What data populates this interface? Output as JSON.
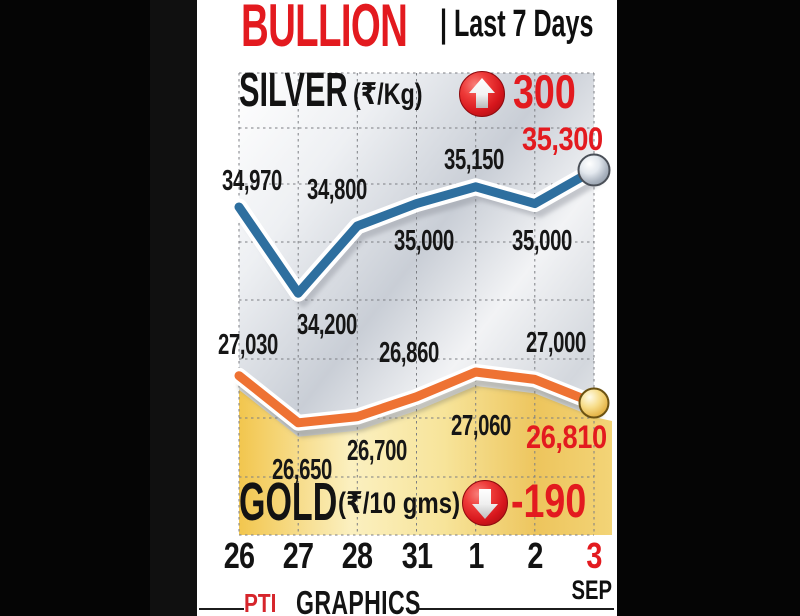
{
  "header": {
    "title": "BULLION",
    "subtitle": "| Last 7 Days"
  },
  "silver_section": {
    "name": "SILVER",
    "unit": "(₹/Kg)",
    "change": "300",
    "direction": "up"
  },
  "gold_section": {
    "name": "GOLD",
    "unit": "(₹/10 gms)",
    "change": "-190",
    "direction": "down"
  },
  "axis": {
    "month": "SEP"
  },
  "footer": {
    "logo": "PTI",
    "text": "GRAPHICS"
  },
  "colors": {
    "accent_red": "#e31a1f",
    "silver_line": "#2e6f9f",
    "gold_line": "#ee7233",
    "grid": "#7c7e83"
  },
  "chart_data": {
    "type": "line",
    "title": "BULLION | Last 7 Days",
    "categories": [
      "26",
      "27",
      "28",
      "31",
      "1",
      "2",
      "3"
    ],
    "x_month_label": "SEP",
    "grid": true,
    "highlight_last_category": true,
    "series": [
      {
        "name": "SILVER",
        "unit": "₹/Kg",
        "color": "#2e6f9f",
        "values": [
          34970,
          34200,
          34800,
          35000,
          35150,
          35000,
          35300
        ],
        "point_labels": [
          "34,970",
          "34,200",
          "34,800",
          "35,000",
          "35,150",
          "35,000",
          "35,300"
        ],
        "change": 300,
        "ylim": [
          34200,
          35300
        ]
      },
      {
        "name": "GOLD",
        "unit": "₹/10 gms",
        "color": "#ee7233",
        "values": [
          27030,
          26650,
          26700,
          26860,
          27060,
          27000,
          26810
        ],
        "point_labels": [
          "27,030",
          "26,650",
          "26,700",
          "26,860",
          "27,060",
          "27,000",
          "26,810"
        ],
        "change": -190,
        "ylim": [
          26650,
          27060
        ]
      }
    ]
  }
}
